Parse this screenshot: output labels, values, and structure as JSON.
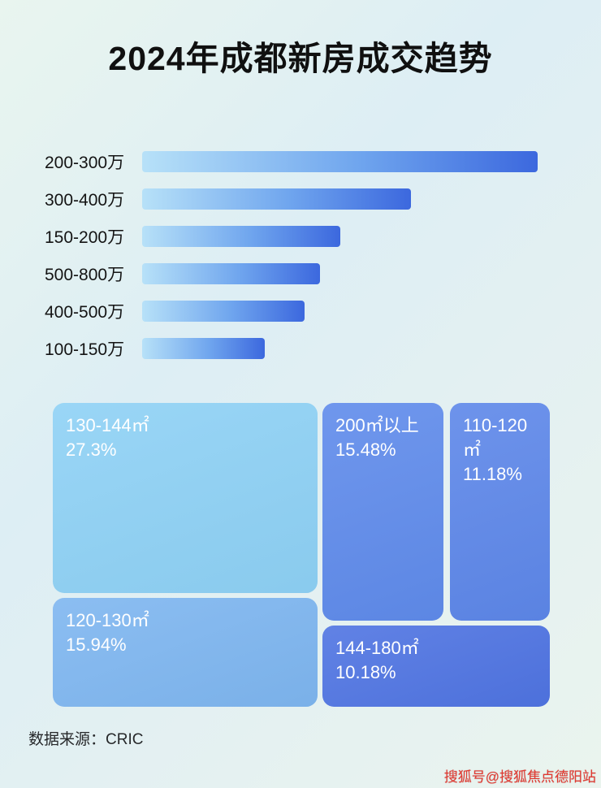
{
  "title": "2024年成都新房成交趋势",
  "chart_data": [
    {
      "type": "bar",
      "orientation": "horizontal",
      "title": "2024年成都新房成交趋势",
      "categories": [
        "200-300万",
        "300-400万",
        "150-200万",
        "500-800万",
        "400-500万",
        "100-150万"
      ],
      "values": [
        100,
        68,
        50,
        45,
        41,
        31
      ],
      "value_note": "relative bar length, max = 100 (no numeric axis shown)",
      "xlabel": "",
      "ylabel": "",
      "grid": false,
      "legend": false,
      "bar_gradient": [
        "#b7e1f8",
        "#3c68de"
      ]
    },
    {
      "type": "heatmap",
      "subtype": "treemap",
      "items": [
        {
          "label": "130-144㎡",
          "value": "27.3%",
          "color": "#8ed1f5"
        },
        {
          "label": "200㎡以上",
          "value": "15.48%",
          "color": "#5f8beb"
        },
        {
          "label": "110-120㎡",
          "value": "11.18%",
          "color": "#5d87e9"
        },
        {
          "label": "120-130㎡",
          "value": "15.94%",
          "color": "#7eb6f0"
        },
        {
          "label": "144-180㎡",
          "value": "10.18%",
          "color": "#4f74e2"
        }
      ]
    }
  ],
  "footer": {
    "source": "数据来源：CRIC"
  },
  "watermark": "搜狐号@搜狐焦点德阳站"
}
